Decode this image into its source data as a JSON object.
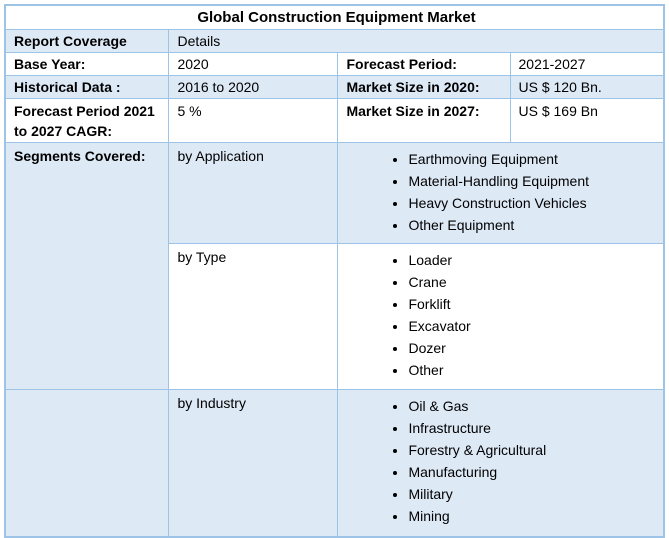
{
  "title": "Global Construction Equipment Market",
  "colors": {
    "row_fill": "#DEE9F6",
    "border": "#9DC3E6",
    "text": "#000000",
    "background": "#FFFFFF"
  },
  "report_coverage": {
    "label": "Report Coverage",
    "value": "Details"
  },
  "base_year": {
    "label": "Base Year:",
    "value": "2020"
  },
  "forecast_period": {
    "label": "Forecast Period:",
    "value": "2021-2027"
  },
  "historical_data": {
    "label": "Historical Data :",
    "value": "2016 to 2020"
  },
  "market_size_2020": {
    "label": "Market Size in 2020:",
    "value": "US $ 120 Bn."
  },
  "cagr": {
    "label": "Forecast Period 2021 to 2027 CAGR:",
    "value": "5 %"
  },
  "market_size_2027": {
    "label": "Market Size in 2027:",
    "value": "US $ 169 Bn"
  },
  "segments": {
    "label": "Segments Covered:",
    "groups": [
      {
        "name": "by Application",
        "items": [
          "Earthmoving Equipment",
          "Material-Handling Equipment",
          "Heavy Construction Vehicles",
          "Other Equipment"
        ]
      },
      {
        "name": "by Type",
        "items": [
          "Loader",
          "Crane",
          "Forklift",
          "Excavator",
          "Dozer",
          "Other"
        ]
      },
      {
        "name": "by Industry",
        "items": [
          "Oil & Gas",
          "Infrastructure",
          "Forestry & Agricultural",
          "Manufacturing",
          "Military",
          "Mining"
        ]
      }
    ]
  }
}
